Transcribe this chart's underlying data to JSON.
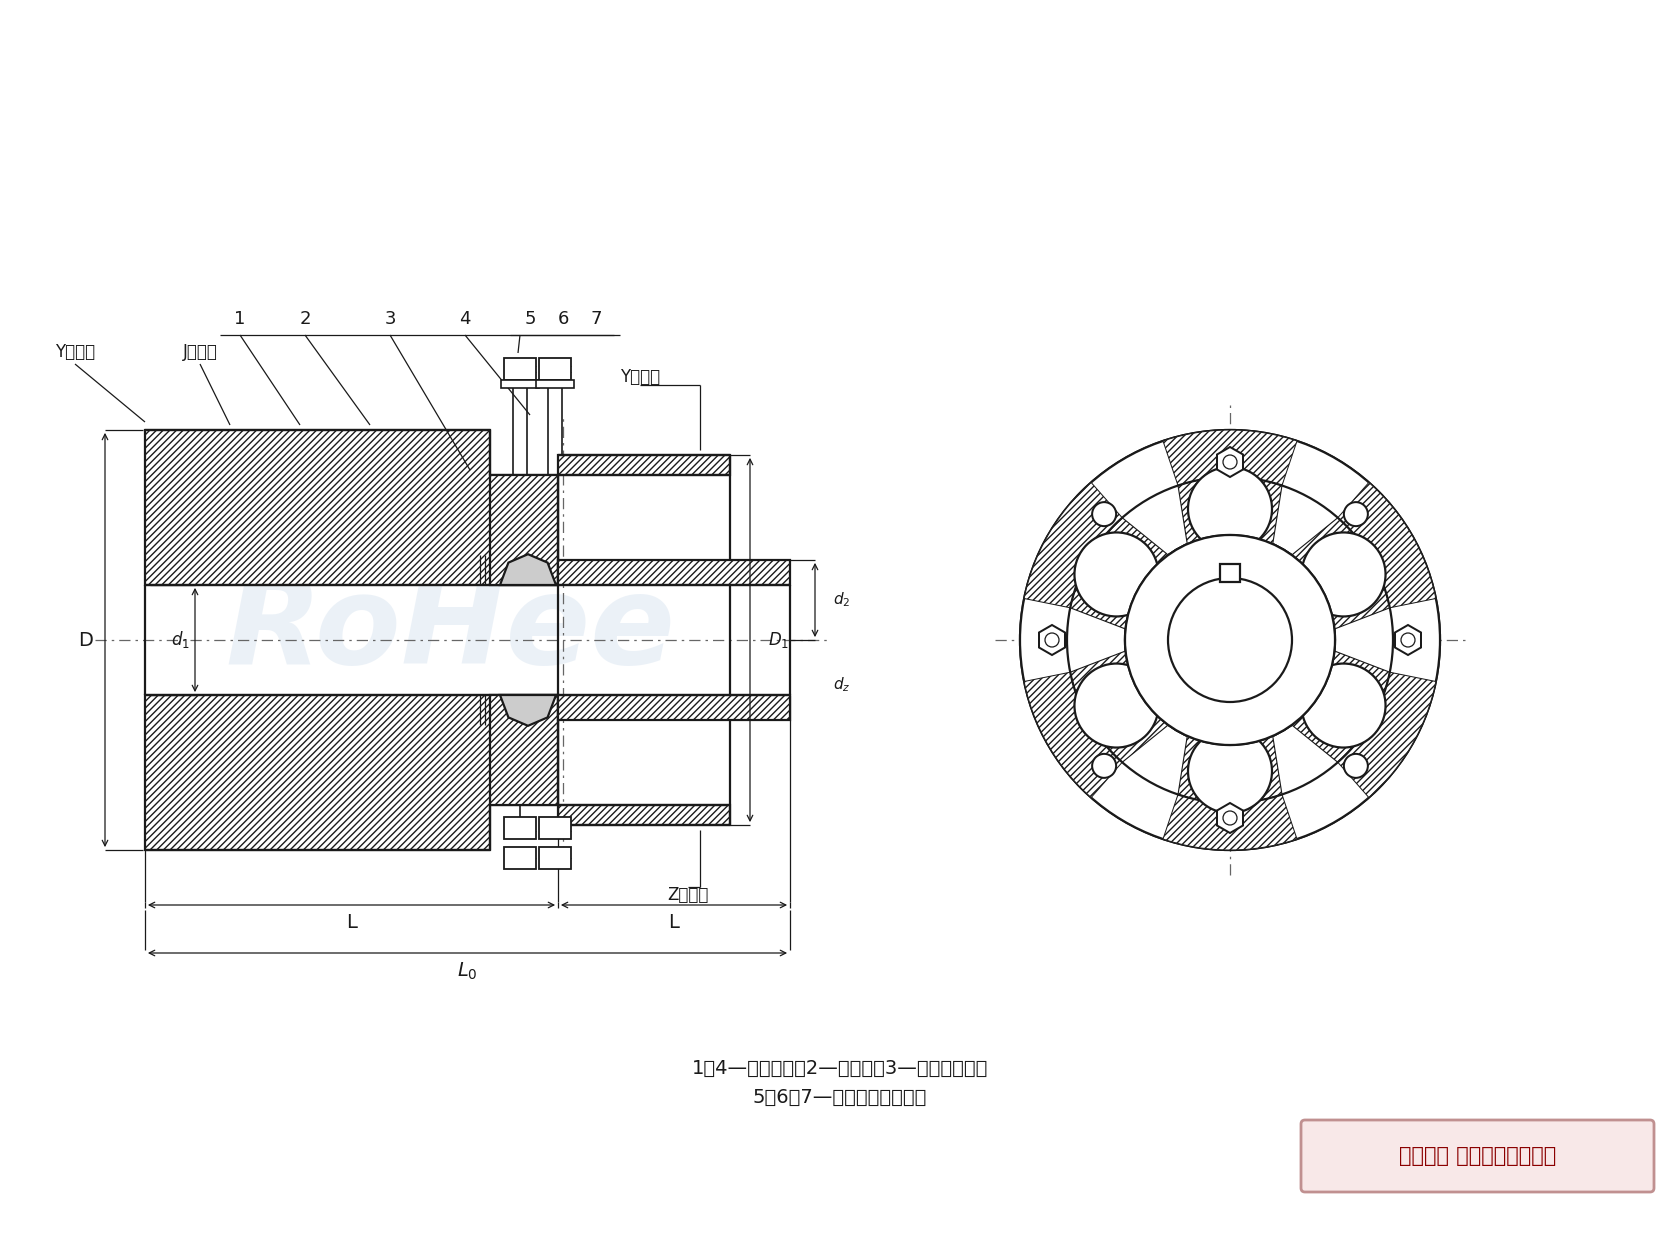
{
  "bg_color": "#ffffff",
  "line_color": "#1a1a1a",
  "note_text1": "1、4—半联轴器；2—弹性件；3—法兰连接件；",
  "note_text2": "5、6、7—螺栓、螺母、广片",
  "label_Y_left": "Y型轴孔",
  "label_J_left": "J型轴孔",
  "label_Y_right": "Y型轴孔",
  "label_Z_right": "Z型轴孔",
  "copyright_text": "版权所有 侵权必被严厉追究",
  "copyright_bg": "#f8e8e8",
  "copyright_border": "#c09090",
  "watermark_color": "#ccdcec"
}
